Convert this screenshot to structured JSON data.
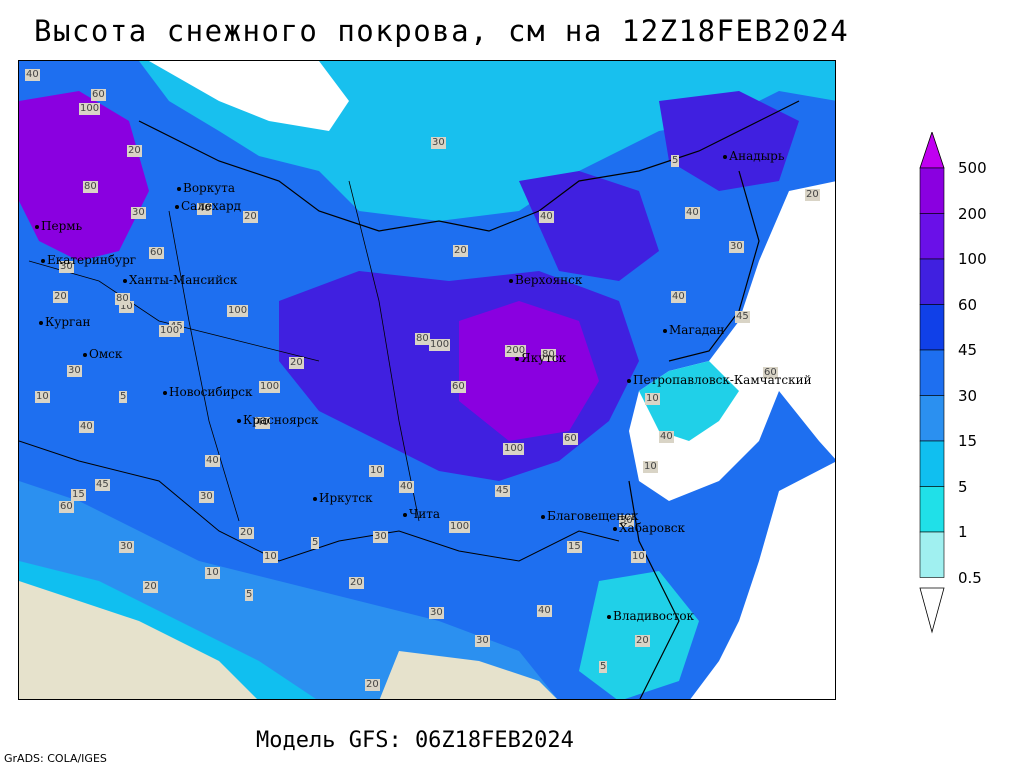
{
  "title": "Высота снежного покрова, см на 12Z18FEB2024",
  "subtitle": "Модель GFS: 06Z18FEB2024",
  "credit": "GrADS: COLA/IGES",
  "legend": {
    "levels": [
      "500",
      "200",
      "100",
      "60",
      "45",
      "30",
      "15",
      "5",
      "1",
      "0.5"
    ],
    "colors": [
      "#c000f0",
      "#8a00e0",
      "#6a10e8",
      "#4020e0",
      "#1040e8",
      "#1e6ff0",
      "#2b90f0",
      "#10bff0",
      "#20e0e8",
      "#a0f0f0"
    ]
  },
  "colors": {
    "land_none": "#e6e2cc",
    "sea": "#ffffff",
    "snow_light": "#20d0e8",
    "snow_mid": "#1e6ff0",
    "snow_deep": "#4020e0",
    "snow_very_deep": "#8a00e0"
  },
  "cities": [
    "Воркута",
    "Салехард",
    "Пермь",
    "Екатеринбург",
    "Ханты-Мансийск",
    "Курган",
    "Омск",
    "Новосибирск",
    "Красноярск",
    "Иркутск",
    "Чита",
    "Благовещенск",
    "Хабаровск",
    "Владивосток",
    "Якутск",
    "Верхоянск",
    "Магадан",
    "Анадырь",
    "Петропавловск-Камчатский"
  ],
  "contour_labels": [
    "40",
    "100",
    "60",
    "20",
    "80",
    "30",
    "10",
    "45",
    "5",
    "15",
    "30",
    "40",
    "20",
    "60",
    "80",
    "100",
    "100",
    "100",
    "40",
    "20",
    "20",
    "10",
    "30",
    "40",
    "60",
    "45",
    "30",
    "20",
    "10",
    "5",
    "40",
    "30",
    "20",
    "10",
    "5",
    "10",
    "20",
    "30",
    "100",
    "80",
    "40",
    "60",
    "30",
    "45",
    "20",
    "30",
    "40",
    "15",
    "10",
    "20",
    "5",
    "40",
    "45",
    "60",
    "100",
    "200",
    "30",
    "10",
    "40",
    "5",
    "80",
    "20",
    "30",
    "40",
    "60",
    "100",
    "40",
    "20",
    "10",
    "30"
  ]
}
